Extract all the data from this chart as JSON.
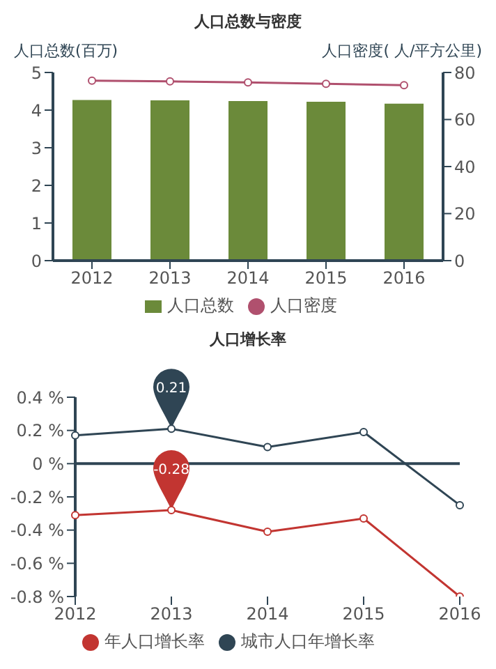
{
  "chart_data": [
    {
      "type": "bar",
      "title": "人口总数与密度",
      "ylabel": "人口总数(百万)",
      "y2label": "人口密度( 人/平方公里)",
      "categories": [
        "2012",
        "2013",
        "2014",
        "2015",
        "2016"
      ],
      "series": [
        {
          "name": "人口总数",
          "type": "bar",
          "color": "#6b8a3a",
          "values": [
            4.27,
            4.26,
            4.24,
            4.22,
            4.17
          ]
        },
        {
          "name": "人口密度",
          "type": "line",
          "axis": "y2",
          "color": "#b0506e",
          "values": [
            76.5,
            76.2,
            75.8,
            75.2,
            74.6
          ]
        }
      ],
      "ylim": [
        0,
        5
      ],
      "yticks": [
        0,
        1,
        2,
        3,
        4,
        5
      ],
      "y2lim": [
        0,
        80
      ],
      "y2ticks": [
        0,
        20,
        40,
        60,
        80
      ],
      "legend": "bottom",
      "marker": "circle",
      "line_style": "solid"
    },
    {
      "type": "line",
      "title": "人口增长率",
      "categories": [
        "2012",
        "2013",
        "2014",
        "2015",
        "2016"
      ],
      "series": [
        {
          "name": "年人口增长率",
          "color": "#c23531",
          "values": [
            -0.31,
            -0.28,
            -0.41,
            -0.33,
            -0.8
          ]
        },
        {
          "name": "城市人口年增长率",
          "color": "#2f4554",
          "values": [
            0.17,
            0.21,
            0.1,
            0.19,
            -0.25
          ]
        }
      ],
      "ylim": [
        -0.8,
        0.4
      ],
      "yticks": [
        {
          "value": -0.8,
          "label": "-0.8 %"
        },
        {
          "value": -0.6,
          "label": "-0.6 %"
        },
        {
          "value": -0.4,
          "label": "-0.4 %"
        },
        {
          "value": -0.2,
          "label": "-0.2 %"
        },
        {
          "value": 0,
          "label": "0 %"
        },
        {
          "value": 0.2,
          "label": "0.2 %"
        },
        {
          "value": 0.4,
          "label": "0.4 %"
        }
      ],
      "ref_lines": [
        {
          "axis": "y",
          "value": 0,
          "color": "#2f4554"
        }
      ],
      "annotations": [
        {
          "text": "0.21",
          "x": "2013",
          "y": 0.21
        },
        {
          "text": "-0.28",
          "x": "2013",
          "y": -0.28
        }
      ],
      "legend": "bottom",
      "marker": "circle",
      "line_style": "solid"
    }
  ]
}
